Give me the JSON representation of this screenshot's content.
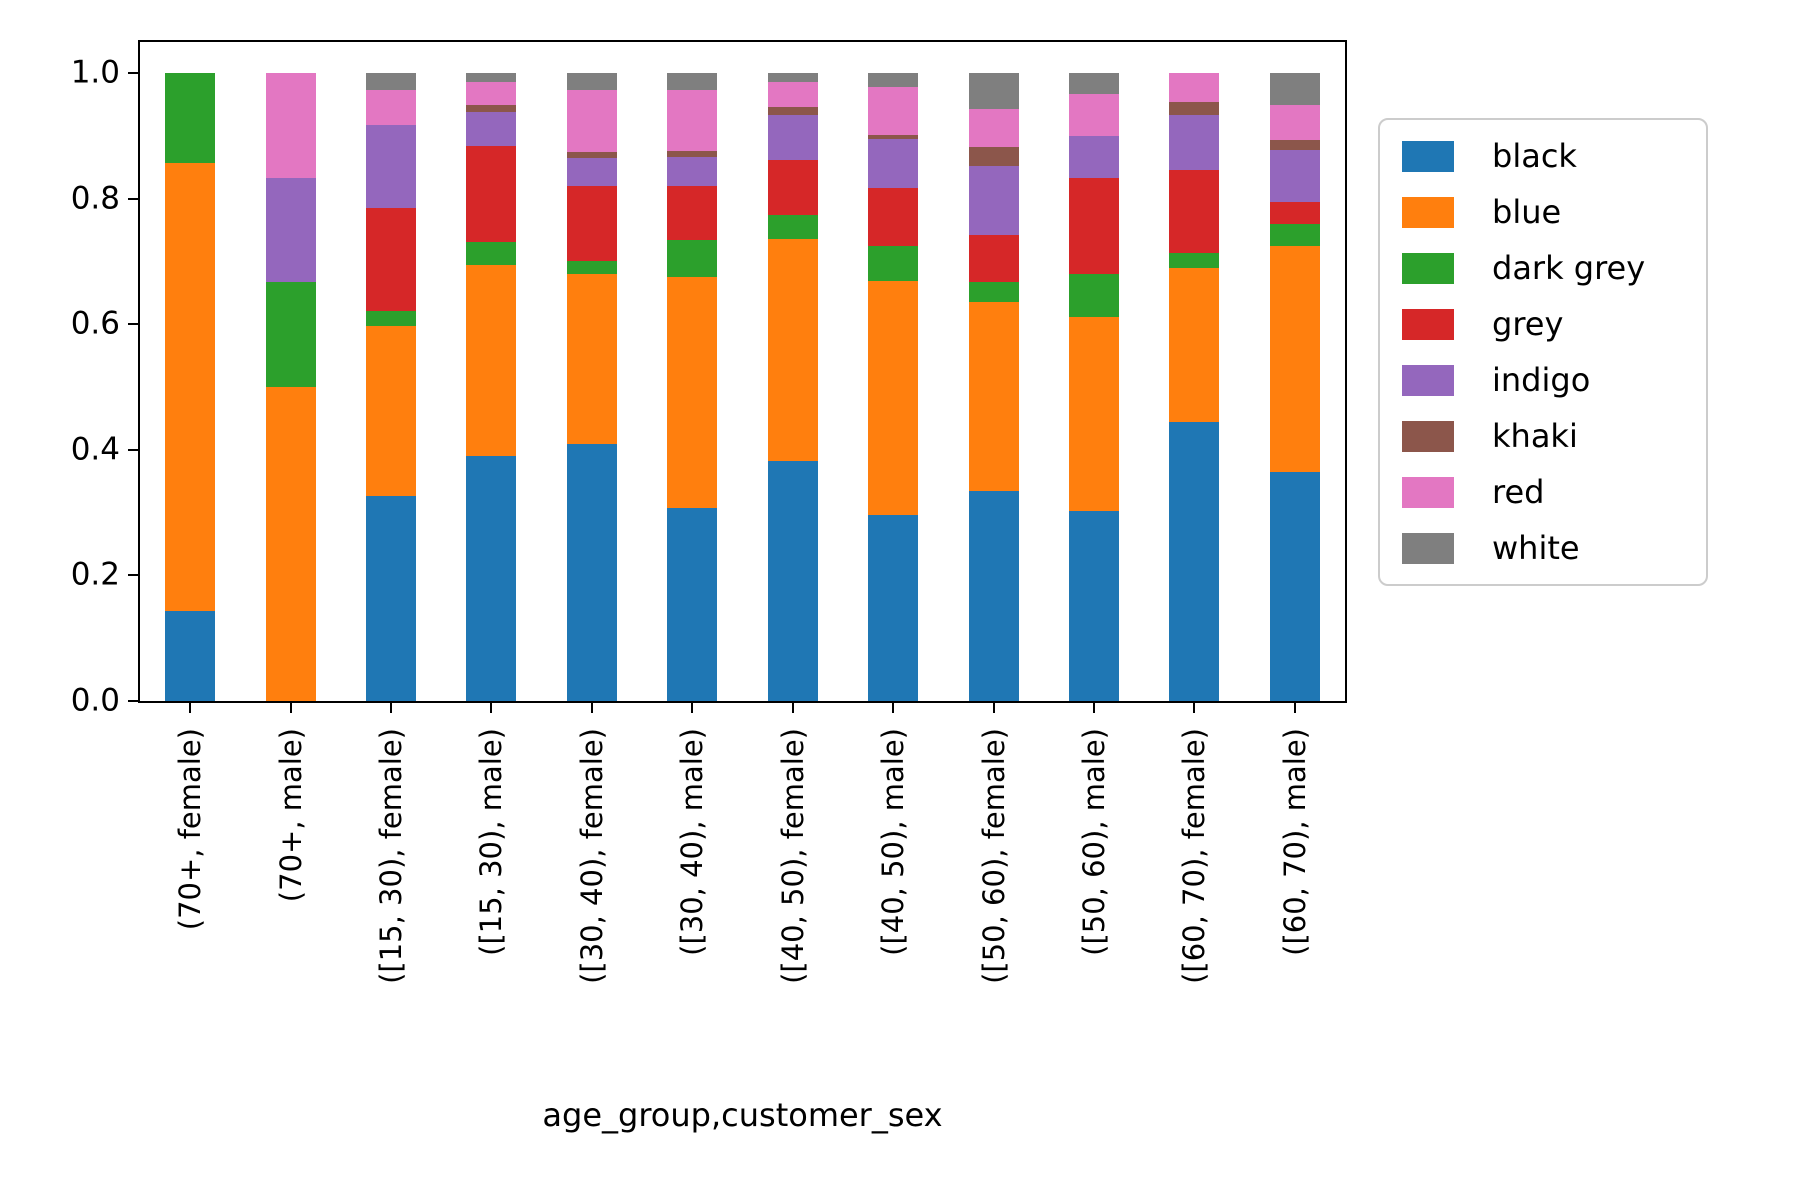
{
  "chart_data": {
    "type": "bar",
    "stacked": true,
    "normalized": true,
    "title": "",
    "xlabel": "age_group,customer_sex",
    "ylabel": "",
    "ylim": [
      0,
      1.05
    ],
    "yticks": [
      0.0,
      0.2,
      0.4,
      0.6,
      0.8,
      1.0
    ],
    "grid": false,
    "legend_position": "right",
    "categories": [
      "(70+, female)",
      "(70+, male)",
      "([15, 30), female)",
      "([15, 30), male)",
      "([30, 40), female)",
      "([30, 40), male)",
      "([40, 50), female)",
      "([40, 50), male)",
      "([50, 60), female)",
      "([50, 60), male)",
      "([60, 70), female)",
      "([60, 70), male)"
    ],
    "series": [
      {
        "name": "black",
        "color": "#1f77b4",
        "values": [
          0.143,
          0.0,
          0.326,
          0.39,
          0.41,
          0.307,
          0.382,
          0.296,
          0.334,
          0.302,
          0.445,
          0.365
        ]
      },
      {
        "name": "blue",
        "color": "#ff7f0e",
        "values": [
          0.714,
          0.5,
          0.271,
          0.304,
          0.27,
          0.368,
          0.354,
          0.374,
          0.302,
          0.31,
          0.245,
          0.36
        ]
      },
      {
        "name": "dark grey",
        "color": "#2ca02c",
        "values": [
          0.143,
          0.167,
          0.025,
          0.038,
          0.021,
          0.059,
          0.038,
          0.055,
          0.031,
          0.068,
          0.024,
          0.035
        ]
      },
      {
        "name": "grey",
        "color": "#d62728",
        "values": [
          0.0,
          0.0,
          0.164,
          0.152,
          0.12,
          0.087,
          0.088,
          0.093,
          0.075,
          0.154,
          0.132,
          0.035
        ]
      },
      {
        "name": "indigo",
        "color": "#9467bd",
        "values": [
          0.0,
          0.167,
          0.132,
          0.054,
          0.045,
          0.046,
          0.071,
          0.078,
          0.11,
          0.066,
          0.087,
          0.083
        ]
      },
      {
        "name": "khaki",
        "color": "#8c564b",
        "values": [
          0.0,
          0.0,
          0.0,
          0.012,
          0.009,
          0.01,
          0.013,
          0.006,
          0.031,
          0.0,
          0.022,
          0.016
        ]
      },
      {
        "name": "red",
        "color": "#e377c2",
        "values": [
          0.0,
          0.166,
          0.056,
          0.037,
          0.099,
          0.096,
          0.041,
          0.077,
          0.06,
          0.067,
          0.045,
          0.056
        ]
      },
      {
        "name": "white",
        "color": "#7f7f7f",
        "values": [
          0.0,
          0.0,
          0.026,
          0.013,
          0.026,
          0.027,
          0.013,
          0.021,
          0.057,
          0.033,
          0.0,
          0.05
        ]
      }
    ]
  }
}
